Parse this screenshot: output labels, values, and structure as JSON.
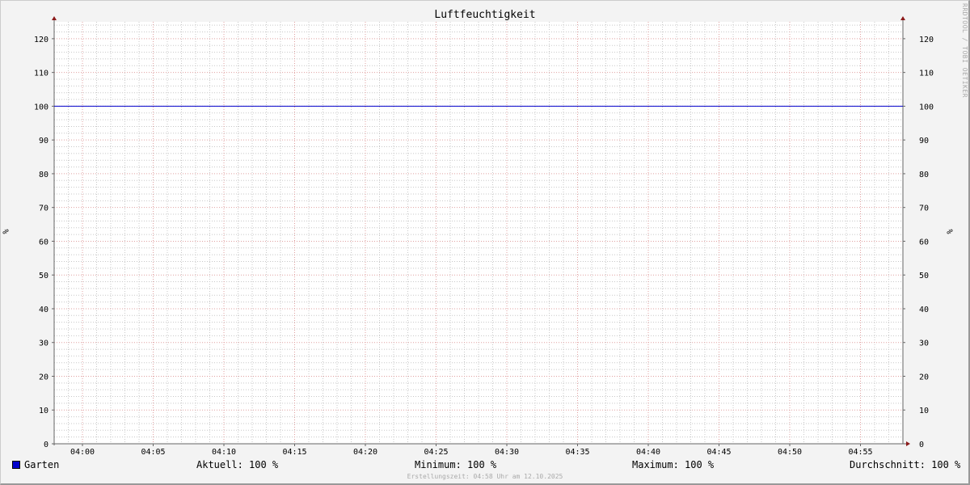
{
  "chart_data": {
    "type": "line",
    "title": "Luftfeuchtigkeit",
    "ylabel": "%",
    "ylabel_right": "%",
    "ylim": [
      0,
      125
    ],
    "y_ticks": [
      "0",
      "10",
      "20",
      "30",
      "40",
      "50",
      "60",
      "70",
      "80",
      "90",
      "100",
      "110",
      "120"
    ],
    "xlim": [
      "03:58",
      "04:58"
    ],
    "x_ticks": [
      "04:00",
      "04:05",
      "04:10",
      "04:15",
      "04:20",
      "04:25",
      "04:30",
      "04:35",
      "04:40",
      "04:45",
      "04:50",
      "04:55"
    ],
    "grid": true,
    "series": [
      {
        "name": "Garten",
        "color": "#0000cc",
        "x": [
          "03:58",
          "04:58"
        ],
        "values": [
          100,
          100
        ]
      }
    ],
    "legend_placement": "bottom"
  },
  "legend": {
    "series_name": "Garten",
    "current": "Aktuell: 100 %",
    "minimum": "Minimum: 100 %",
    "maximum": "Maximum: 100 %",
    "average": "Durchschnitt: 100 %"
  },
  "watermark": "RRDTOOL / TOBI OETIKER",
  "footer": "Erstellungszeit: 04:58 Uhr am 12.10.2025",
  "colors": {
    "series": "#0000cc",
    "major_grid": "#e0a0a0",
    "minor_grid": "#c8c8c8",
    "axis_arrow": "#8b1a1a"
  }
}
